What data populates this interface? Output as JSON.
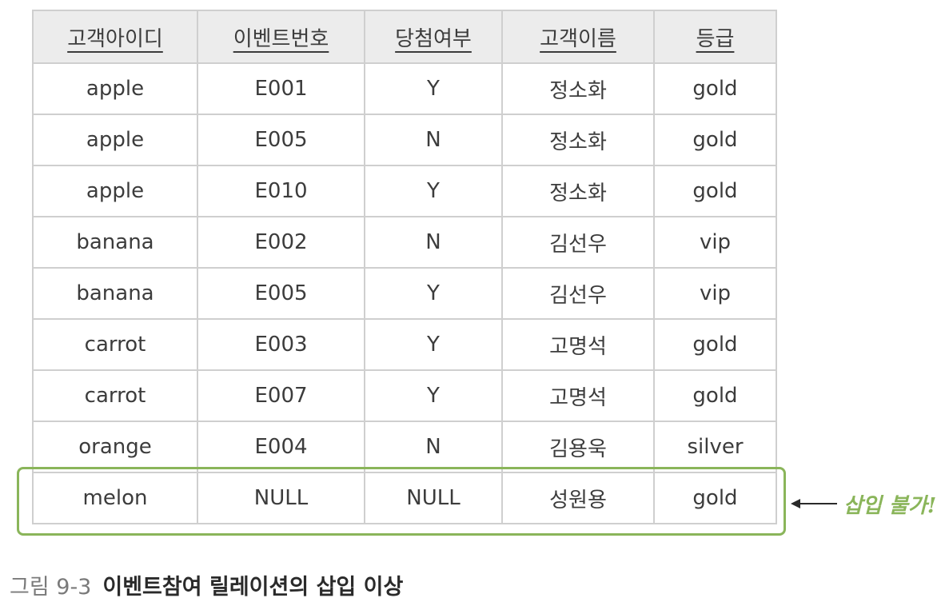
{
  "table": {
    "headers": [
      "고객아이디",
      "이벤트번호",
      "당첨여부",
      "고객이름",
      "등급"
    ],
    "rows": [
      [
        "apple",
        "E001",
        "Y",
        "정소화",
        "gold"
      ],
      [
        "apple",
        "E005",
        "N",
        "정소화",
        "gold"
      ],
      [
        "apple",
        "E010",
        "Y",
        "정소화",
        "gold"
      ],
      [
        "banana",
        "E002",
        "N",
        "김선우",
        "vip"
      ],
      [
        "banana",
        "E005",
        "Y",
        "김선우",
        "vip"
      ],
      [
        "carrot",
        "E003",
        "Y",
        "고명석",
        "gold"
      ],
      [
        "carrot",
        "E007",
        "Y",
        "고명석",
        "gold"
      ],
      [
        "orange",
        "E004",
        "N",
        "김용욱",
        "silver"
      ],
      [
        "melon",
        "NULL",
        "NULL",
        "성원용",
        "gold"
      ]
    ]
  },
  "annotation": {
    "text": "삽입 불가!",
    "color": "#8ab55a"
  },
  "caption": {
    "number": "그림 9-3",
    "title": "이벤트참여 릴레이션의 삽입 이상"
  }
}
